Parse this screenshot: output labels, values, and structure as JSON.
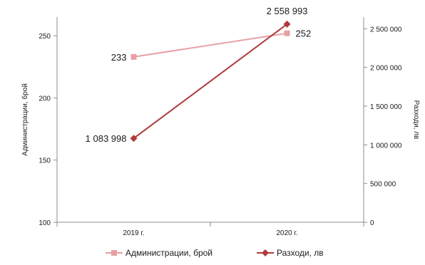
{
  "chart_data": {
    "type": "line",
    "categories": [
      "2019 г.",
      "2020 г."
    ],
    "series": [
      {
        "name": "Администрации, брой",
        "axis": "left",
        "values": [
          233,
          252
        ],
        "data_labels": [
          "233",
          "252"
        ],
        "color": "#E8A0A4",
        "marker": "square"
      },
      {
        "name": "Разходи, лв",
        "axis": "right",
        "values": [
          1083998,
          2558993
        ],
        "data_labels": [
          "1 083 998",
          "2 558 993"
        ],
        "color": "#B03A3A",
        "marker": "diamond"
      }
    ],
    "y_left": {
      "label": "Администрации, брой",
      "ylim": [
        100,
        265
      ],
      "ticks": [
        100,
        150,
        200,
        250
      ],
      "tick_labels": [
        "100",
        "150",
        "200",
        "250"
      ]
    },
    "y_right": {
      "label": "Разходи, лв",
      "ylim": [
        0,
        2650000
      ],
      "ticks": [
        0,
        500000,
        1000000,
        1500000,
        2000000,
        2500000
      ],
      "tick_labels": [
        "0",
        "500 000",
        "1 000 000",
        "1 500 000",
        "2 000 000",
        "2 500 000"
      ]
    },
    "grid": false,
    "legend_position": "bottom"
  }
}
